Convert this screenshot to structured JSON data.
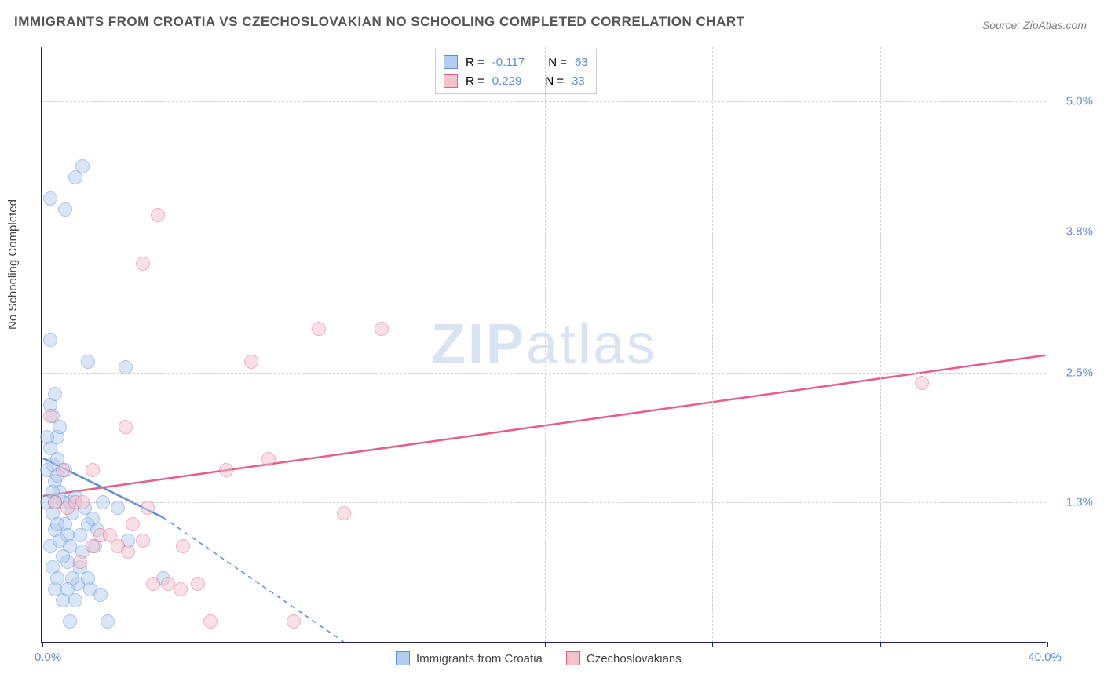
{
  "title": "IMMIGRANTS FROM CROATIA VS CZECHOSLOVAKIAN NO SCHOOLING COMPLETED CORRELATION CHART",
  "source": "Source: ZipAtlas.com",
  "ylabel": "No Schooling Completed",
  "watermark_bold": "ZIP",
  "watermark_light": "atlas",
  "chart": {
    "type": "scatter",
    "xlim": [
      0,
      40
    ],
    "ylim": [
      0,
      5.5
    ],
    "xticks": [
      0,
      6.67,
      13.33,
      20,
      26.67,
      33.33,
      40
    ],
    "xtick_labels_shown": {
      "left": "0.0%",
      "right": "40.0%"
    },
    "yticks": [
      1.3,
      2.5,
      3.8,
      5.0
    ],
    "ytick_labels": [
      "1.3%",
      "2.5%",
      "3.8%",
      "5.0%"
    ],
    "background_color": "#ffffff",
    "grid_color": "#d0d0d0",
    "axis_color": "#1a2b5c",
    "tick_label_color": "#5b8dd6",
    "marker_radius": 9,
    "marker_stroke_width": 1.5,
    "line_width": 2.5
  },
  "series": [
    {
      "name": "Immigrants from Croatia",
      "fill_color": "#b3cef0",
      "stroke_color": "#5b8dd6",
      "fill_opacity": 0.5,
      "r_label": "R =",
      "r_value": "-0.117",
      "n_label": "N =",
      "n_value": "63",
      "trend": {
        "x1": 0,
        "y1": 1.7,
        "x2": 4.8,
        "y2": 1.15,
        "extend_x2": 12,
        "extend_y2": 0.0,
        "dashed_after_data": true
      },
      "points": [
        [
          0.2,
          1.6
        ],
        [
          0.3,
          1.8
        ],
        [
          0.4,
          2.1
        ],
        [
          0.5,
          1.5
        ],
        [
          0.6,
          1.9
        ],
        [
          0.3,
          2.2
        ],
        [
          0.8,
          1.3
        ],
        [
          0.9,
          1.1
        ],
        [
          1.0,
          1.0
        ],
        [
          1.1,
          0.9
        ],
        [
          1.2,
          1.2
        ],
        [
          0.7,
          1.4
        ],
        [
          0.4,
          0.7
        ],
        [
          0.5,
          0.5
        ],
        [
          0.6,
          0.6
        ],
        [
          0.8,
          0.4
        ],
        [
          1.4,
          0.55
        ],
        [
          1.6,
          0.85
        ],
        [
          1.5,
          1.0
        ],
        [
          1.9,
          0.5
        ],
        [
          2.3,
          0.45
        ],
        [
          0.3,
          2.8
        ],
        [
          0.5,
          2.3
        ],
        [
          0.7,
          2.0
        ],
        [
          0.2,
          1.9
        ],
        [
          0.4,
          1.65
        ],
        [
          0.6,
          1.55
        ],
        [
          0.9,
          1.6
        ],
        [
          1.1,
          1.3
        ],
        [
          1.3,
          1.35
        ],
        [
          1.7,
          1.25
        ],
        [
          1.8,
          1.1
        ],
        [
          2.0,
          1.15
        ],
        [
          2.2,
          1.05
        ],
        [
          0.3,
          0.9
        ],
        [
          0.5,
          1.05
        ],
        [
          0.7,
          0.95
        ],
        [
          1.0,
          0.75
        ],
        [
          1.2,
          0.6
        ],
        [
          1.5,
          0.7
        ],
        [
          1.8,
          0.6
        ],
        [
          2.1,
          0.9
        ],
        [
          2.4,
          1.3
        ],
        [
          3.0,
          1.25
        ],
        [
          3.4,
          0.95
        ],
        [
          4.8,
          0.6
        ],
        [
          0.9,
          4.0
        ],
        [
          1.6,
          4.4
        ],
        [
          1.3,
          4.3
        ],
        [
          1.8,
          2.6
        ],
        [
          3.3,
          2.55
        ],
        [
          0.4,
          1.2
        ],
        [
          0.6,
          1.1
        ],
        [
          0.8,
          0.8
        ],
        [
          1.0,
          0.5
        ],
        [
          1.3,
          0.4
        ],
        [
          2.6,
          0.2
        ],
        [
          1.1,
          0.2
        ],
        [
          0.3,
          4.1
        ],
        [
          0.2,
          1.3
        ],
        [
          0.4,
          1.4
        ],
        [
          0.5,
          1.3
        ],
        [
          0.6,
          1.7
        ]
      ]
    },
    {
      "name": "Czechoslovakians",
      "fill_color": "#f4c3ce",
      "stroke_color": "#e85d87",
      "fill_opacity": 0.5,
      "r_label": "R =",
      "r_value": "0.229",
      "n_label": "N =",
      "n_value": "33",
      "trend": {
        "x1": 0,
        "y1": 1.35,
        "x2": 40,
        "y2": 2.65,
        "dashed_after_data": false
      },
      "points": [
        [
          0.3,
          2.1
        ],
        [
          0.5,
          1.3
        ],
        [
          0.8,
          1.6
        ],
        [
          1.0,
          1.25
        ],
        [
          1.3,
          1.3
        ],
        [
          1.6,
          1.3
        ],
        [
          2.0,
          1.6
        ],
        [
          2.3,
          1.0
        ],
        [
          2.7,
          1.0
        ],
        [
          3.0,
          0.9
        ],
        [
          3.4,
          0.85
        ],
        [
          3.6,
          1.1
        ],
        [
          4.0,
          0.95
        ],
        [
          4.4,
          0.55
        ],
        [
          5.0,
          0.55
        ],
        [
          5.6,
          0.9
        ],
        [
          6.2,
          0.55
        ],
        [
          6.7,
          0.2
        ],
        [
          7.3,
          1.6
        ],
        [
          8.3,
          2.6
        ],
        [
          10.0,
          0.2
        ],
        [
          11.0,
          2.9
        ],
        [
          12.0,
          1.2
        ],
        [
          13.5,
          2.9
        ],
        [
          4.0,
          3.5
        ],
        [
          4.6,
          3.95
        ],
        [
          3.3,
          2.0
        ],
        [
          5.5,
          0.5
        ],
        [
          2.0,
          0.9
        ],
        [
          1.5,
          0.75
        ],
        [
          4.2,
          1.25
        ],
        [
          9.0,
          1.7
        ],
        [
          35.0,
          2.4
        ]
      ]
    }
  ],
  "legend_top": {
    "border_color": "#cccccc"
  },
  "legend_bottom_labels": [
    "Immigrants from Croatia",
    "Czechoslovakians"
  ]
}
